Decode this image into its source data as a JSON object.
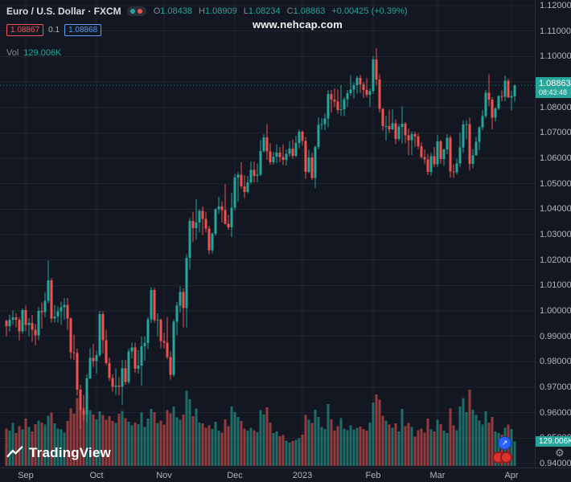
{
  "header": {
    "title": "Euro / U.S. Dollar · FXCM",
    "ohlc": [
      {
        "label": "O",
        "value": "1.08438"
      },
      {
        "label": "H",
        "value": "1.08909"
      },
      {
        "label": "L",
        "value": "1.08234"
      },
      {
        "label": "C",
        "value": "1.08863"
      }
    ],
    "change": "+0.00425 (+0.39%)",
    "bid": "1.08867",
    "spread": "0.1",
    "ask": "1.08868",
    "vol_label": "Vol",
    "vol_value": "129.006K"
  },
  "watermark": "www.nehcap.com",
  "logo": {
    "text": "TradingView"
  },
  "colors": {
    "up": "#26a69a",
    "down": "#ef5350",
    "vol_up": "rgba(38,166,154,0.60)",
    "vol_down": "rgba(239,83,80,0.60)",
    "grid": "rgba(255,255,255,0.06)",
    "badge_green": "#26a69a",
    "bid_red": "#f7525f",
    "ask_blue": "#5b9cf6"
  },
  "price_axis": {
    "ticks": [
      "1.12000",
      "1.11000",
      "1.10000",
      "1.09000",
      "1.08000",
      "1.07000",
      "1.06000",
      "1.05000",
      "1.04000",
      "1.03000",
      "1.02000",
      "1.01000",
      "1.00000",
      "0.99000",
      "0.98000",
      "0.97000",
      "0.96000",
      "0.95000",
      "0.94000"
    ],
    "last_price": "1.08863",
    "countdown": "08:43:48",
    "volume_badge": "129.006K"
  },
  "time_axis": {
    "labels": [
      {
        "text": "Sep",
        "index": 6
      },
      {
        "text": "Oct",
        "index": 28
      },
      {
        "text": "Nov",
        "index": 49
      },
      {
        "text": "Dec",
        "index": 71
      },
      {
        "text": "2023",
        "index": 92
      },
      {
        "text": "Feb",
        "index": 114
      },
      {
        "text": "Mar",
        "index": 134
      },
      {
        "text": "Apr",
        "index": 157
      }
    ]
  },
  "chart_data": {
    "type": "candlestick",
    "title": "Euro / U.S. Dollar",
    "exchange": "FXCM",
    "y_range": [
      0.94,
      1.12
    ],
    "volume_unit": "K",
    "columns": [
      "open",
      "high",
      "low",
      "close",
      "volume_k"
    ],
    "candles": [
      [
        0.996,
        0.9965,
        0.99,
        0.994,
        198
      ],
      [
        0.994,
        0.9985,
        0.992,
        0.9966,
        186
      ],
      [
        0.9966,
        1.0003,
        0.9945,
        0.9975,
        227
      ],
      [
        0.9975,
        0.999,
        0.9935,
        0.9965,
        173
      ],
      [
        0.9965,
        0.9975,
        0.9885,
        0.992,
        211
      ],
      [
        0.992,
        1.001,
        0.991,
        1.0003,
        192
      ],
      [
        1.0003,
        1.002,
        0.992,
        0.9945,
        250
      ],
      [
        0.9945,
        0.9972,
        0.9901,
        0.9952,
        205
      ],
      [
        0.9952,
        0.9985,
        0.9878,
        0.9926,
        182
      ],
      [
        0.9926,
        0.995,
        0.9864,
        0.9903,
        221
      ],
      [
        0.9903,
        1.0015,
        0.9885,
        1.0,
        240
      ],
      [
        1.0,
        1.0033,
        0.993,
        0.9995,
        230
      ],
      [
        0.9995,
        1.0075,
        0.9975,
        1.004,
        218
      ],
      [
        1.004,
        1.0198,
        1.003,
        1.012,
        266
      ],
      [
        1.012,
        1.013,
        0.9955,
        0.997,
        282
      ],
      [
        0.997,
        1.0023,
        0.9955,
        0.9978,
        224
      ],
      [
        0.9978,
        1.0017,
        0.9954,
        0.9999,
        198
      ],
      [
        0.9999,
        1.0036,
        0.9945,
        1.0015,
        192
      ],
      [
        1.0015,
        1.005,
        0.9965,
        1.0023,
        176
      ],
      [
        1.0023,
        1.0051,
        0.9926,
        0.997,
        237
      ],
      [
        0.997,
        0.9975,
        0.981,
        0.9838,
        304
      ],
      [
        0.9838,
        0.9907,
        0.9807,
        0.9835,
        275
      ],
      [
        0.9835,
        0.9851,
        0.9667,
        0.969,
        358
      ],
      [
        0.969,
        0.9709,
        0.9536,
        0.9608,
        378
      ],
      [
        0.9608,
        0.967,
        0.957,
        0.9593,
        307
      ],
      [
        0.9593,
        0.975,
        0.9563,
        0.9735,
        333
      ],
      [
        0.9735,
        0.9853,
        0.973,
        0.9815,
        294
      ],
      [
        0.9815,
        0.987,
        0.978,
        0.9802,
        272
      ],
      [
        0.9802,
        0.9844,
        0.9753,
        0.9826,
        246
      ],
      [
        0.9826,
        1.0,
        0.982,
        0.9987,
        288
      ],
      [
        0.9987,
        0.9999,
        0.9835,
        0.9884,
        269
      ],
      [
        0.9884,
        0.9926,
        0.9787,
        0.9794,
        243
      ],
      [
        0.9794,
        0.9817,
        0.9726,
        0.9737,
        262
      ],
      [
        0.9737,
        0.9751,
        0.9682,
        0.9702,
        237
      ],
      [
        0.9702,
        0.9774,
        0.967,
        0.9706,
        227
      ],
      [
        0.9706,
        0.974,
        0.9668,
        0.9702,
        275
      ],
      [
        0.9702,
        0.9807,
        0.9632,
        0.9775,
        291
      ],
      [
        0.9775,
        0.9807,
        0.9709,
        0.9721,
        253
      ],
      [
        0.9721,
        0.9852,
        0.9712,
        0.984,
        234
      ],
      [
        0.984,
        0.9875,
        0.9814,
        0.9857,
        214
      ],
      [
        0.9857,
        0.9876,
        0.9756,
        0.9772,
        230
      ],
      [
        0.9772,
        0.9845,
        0.9754,
        0.9785,
        221
      ],
      [
        0.9785,
        0.9899,
        0.9705,
        0.9861,
        282
      ],
      [
        0.9861,
        0.9899,
        0.9805,
        0.9873,
        205
      ],
      [
        0.9873,
        0.9976,
        0.985,
        0.9967,
        250
      ],
      [
        0.9967,
        1.0093,
        0.9952,
        1.0082,
        301
      ],
      [
        1.0082,
        1.009,
        0.9955,
        0.9963,
        285
      ],
      [
        0.9963,
        0.999,
        0.99,
        0.9965,
        227
      ],
      [
        0.9965,
        0.997,
        0.9853,
        0.9881,
        240
      ],
      [
        0.9881,
        0.9915,
        0.9853,
        0.9876,
        218
      ],
      [
        0.9876,
        0.9976,
        0.981,
        0.9818,
        294
      ],
      [
        0.9818,
        0.984,
        0.973,
        0.9749,
        278
      ],
      [
        0.9749,
        0.9965,
        0.9741,
        0.9958,
        314
      ],
      [
        0.9958,
        1.0034,
        0.9903,
        1.002,
        256
      ],
      [
        1.002,
        1.0096,
        0.9993,
        1.0074,
        243
      ],
      [
        1.0074,
        1.0089,
        0.9935,
        1.0011,
        272
      ],
      [
        1.0011,
        1.0222,
        0.9936,
        1.0209,
        397
      ],
      [
        1.0209,
        1.0364,
        1.0163,
        1.0354,
        352
      ],
      [
        1.0354,
        1.039,
        1.0271,
        1.0325,
        262
      ],
      [
        1.0325,
        1.0439,
        1.028,
        1.0348,
        304
      ],
      [
        1.0348,
        1.04,
        1.031,
        1.0393,
        230
      ],
      [
        1.0393,
        1.041,
        1.0298,
        1.0362,
        224
      ],
      [
        1.0362,
        1.039,
        1.031,
        1.0324,
        202
      ],
      [
        1.0324,
        1.0334,
        1.0222,
        1.0239,
        214
      ],
      [
        1.0239,
        1.031,
        1.0226,
        1.0303,
        195
      ],
      [
        1.0303,
        1.0405,
        1.0295,
        1.0399,
        234
      ],
      [
        1.0399,
        1.0448,
        1.0382,
        1.041,
        186
      ],
      [
        1.041,
        1.043,
        1.0347,
        1.0397,
        176
      ],
      [
        1.0397,
        1.0497,
        1.034,
        1.0343,
        246
      ],
      [
        1.0343,
        1.0378,
        1.0319,
        1.0328,
        211
      ],
      [
        1.0328,
        1.0463,
        1.029,
        1.0406,
        314
      ],
      [
        1.0406,
        1.0539,
        1.0395,
        1.0525,
        285
      ],
      [
        1.0525,
        1.0545,
        1.043,
        1.0535,
        259
      ],
      [
        1.0535,
        1.0585,
        1.048,
        1.049,
        237
      ],
      [
        1.049,
        1.0533,
        1.0443,
        1.0468,
        198
      ],
      [
        1.0468,
        1.0531,
        1.0463,
        1.0506,
        186
      ],
      [
        1.0506,
        1.0587,
        1.0498,
        1.0554,
        202
      ],
      [
        1.0554,
        1.0588,
        1.0505,
        1.053,
        189
      ],
      [
        1.053,
        1.058,
        1.0506,
        1.0536,
        179
      ],
      [
        1.0536,
        1.0673,
        1.053,
        1.0628,
        294
      ],
      [
        1.0628,
        1.0695,
        1.0622,
        1.0682,
        272
      ],
      [
        1.0682,
        1.0735,
        1.0594,
        1.0627,
        310
      ],
      [
        1.0627,
        1.0658,
        1.0575,
        1.0585,
        230
      ],
      [
        1.0585,
        1.0625,
        1.0574,
        1.0607,
        173
      ],
      [
        1.0607,
        1.0654,
        1.0581,
        1.0622,
        182
      ],
      [
        1.0622,
        1.0644,
        1.0584,
        1.0604,
        157
      ],
      [
        1.0604,
        1.0656,
        1.0573,
        1.0594,
        163
      ],
      [
        1.0594,
        1.0635,
        1.0572,
        1.0618,
        134
      ],
      [
        1.0618,
        1.0668,
        1.0606,
        1.0638,
        122
      ],
      [
        1.0638,
        1.0674,
        1.0598,
        1.061,
        131
      ],
      [
        1.061,
        1.0688,
        1.0605,
        1.066,
        138
      ],
      [
        1.066,
        1.0714,
        1.064,
        1.0705,
        147
      ],
      [
        1.0705,
        1.071,
        1.065,
        1.0668,
        166
      ],
      [
        1.0668,
        1.0683,
        1.052,
        1.0546,
        269
      ],
      [
        1.0546,
        1.0635,
        1.0542,
        1.0603,
        243
      ],
      [
        1.0603,
        1.0622,
        1.0515,
        1.0522,
        227
      ],
      [
        1.0522,
        1.065,
        1.0483,
        1.0645,
        298
      ],
      [
        1.0645,
        1.0761,
        1.0634,
        1.0731,
        259
      ],
      [
        1.0731,
        1.0758,
        1.0712,
        1.0734,
        205
      ],
      [
        1.0734,
        1.0776,
        1.0711,
        1.0756,
        195
      ],
      [
        1.0756,
        1.0868,
        1.0722,
        1.0852,
        326
      ],
      [
        1.0852,
        1.0869,
        1.078,
        1.083,
        246
      ],
      [
        1.083,
        1.0874,
        1.0802,
        1.0822,
        186
      ],
      [
        1.0822,
        1.087,
        1.0775,
        1.0789,
        211
      ],
      [
        1.0789,
        1.0887,
        1.0766,
        1.0793,
        253
      ],
      [
        1.0793,
        1.084,
        1.0766,
        1.0832,
        198
      ],
      [
        1.0832,
        1.0868,
        1.0802,
        1.0856,
        189
      ],
      [
        1.0856,
        1.0927,
        1.0846,
        1.087,
        214
      ],
      [
        1.087,
        1.0898,
        1.0835,
        1.0887,
        192
      ],
      [
        1.0887,
        1.0923,
        1.0855,
        1.0916,
        202
      ],
      [
        1.0916,
        1.0929,
        1.0858,
        1.0891,
        208
      ],
      [
        1.0891,
        1.09,
        1.0837,
        1.0868,
        195
      ],
      [
        1.0868,
        1.0915,
        1.084,
        1.0849,
        186
      ],
      [
        1.0849,
        1.0874,
        1.0802,
        1.0863,
        230
      ],
      [
        1.0863,
        1.1001,
        1.0852,
        1.0989,
        336
      ],
      [
        1.0989,
        1.1033,
        1.0886,
        1.091,
        378
      ],
      [
        1.091,
        1.093,
        1.078,
        1.0795,
        349
      ],
      [
        1.0795,
        1.0798,
        1.0709,
        1.0726,
        266
      ],
      [
        1.0726,
        1.0766,
        1.0669,
        1.0726,
        240
      ],
      [
        1.0726,
        1.0791,
        1.07,
        1.0713,
        218
      ],
      [
        1.0713,
        1.0793,
        1.0711,
        1.0737,
        202
      ],
      [
        1.0737,
        1.0753,
        1.0656,
        1.0676,
        224
      ],
      [
        1.0676,
        1.0735,
        1.0668,
        1.0723,
        182
      ],
      [
        1.0723,
        1.0804,
        1.0659,
        1.0736,
        301
      ],
      [
        1.0736,
        1.0744,
        1.066,
        1.069,
        211
      ],
      [
        1.069,
        1.0717,
        1.0612,
        1.0671,
        227
      ],
      [
        1.0671,
        1.0706,
        1.0613,
        1.0694,
        205
      ],
      [
        1.0694,
        1.0705,
        1.0645,
        1.0686,
        154
      ],
      [
        1.0686,
        1.0698,
        1.0636,
        1.0648,
        189
      ],
      [
        1.0648,
        1.0663,
        1.0598,
        1.0605,
        198
      ],
      [
        1.0605,
        1.0635,
        1.0577,
        1.0596,
        176
      ],
      [
        1.0596,
        1.0617,
        1.0533,
        1.0546,
        250
      ],
      [
        1.0546,
        1.062,
        1.0532,
        1.0608,
        192
      ],
      [
        1.0608,
        1.0645,
        1.0565,
        1.0576,
        182
      ],
      [
        1.0576,
        1.0691,
        1.0565,
        1.0666,
        243
      ],
      [
        1.0666,
        1.0673,
        1.0578,
        1.0597,
        221
      ],
      [
        1.0597,
        1.0638,
        1.057,
        1.0635,
        186
      ],
      [
        1.0635,
        1.0694,
        1.0616,
        1.068,
        173
      ],
      [
        1.068,
        1.069,
        1.0524,
        1.0548,
        304
      ],
      [
        1.0548,
        1.0577,
        1.0523,
        1.0545,
        214
      ],
      [
        1.0545,
        1.0599,
        1.0537,
        1.058,
        189
      ],
      [
        1.058,
        1.0701,
        1.0567,
        1.0643,
        314
      ],
      [
        1.0643,
        1.0749,
        1.062,
        1.0732,
        358
      ],
      [
        1.0732,
        1.075,
        1.0674,
        1.0734,
        285
      ],
      [
        1.0734,
        1.076,
        1.0551,
        1.0578,
        403
      ],
      [
        1.0578,
        1.0636,
        1.056,
        1.0611,
        298
      ],
      [
        1.0611,
        1.0686,
        1.0611,
        1.0665,
        269
      ],
      [
        1.0665,
        1.0727,
        1.0632,
        1.0721,
        240
      ],
      [
        1.0721,
        1.0789,
        1.071,
        1.0766,
        218
      ],
      [
        1.0766,
        1.0869,
        1.0758,
        1.0857,
        288
      ],
      [
        1.0857,
        1.093,
        1.0805,
        1.083,
        230
      ],
      [
        1.083,
        1.084,
        1.0713,
        1.076,
        259
      ],
      [
        1.076,
        1.08,
        1.0745,
        1.0796,
        182
      ],
      [
        1.0796,
        1.0848,
        1.0789,
        1.0845,
        173
      ],
      [
        1.0845,
        1.0867,
        1.0824,
        1.0841,
        166
      ],
      [
        1.0841,
        1.0926,
        1.0824,
        1.0905,
        202
      ],
      [
        1.0905,
        1.0913,
        1.0838,
        1.0839,
        218
      ],
      [
        1.0839,
        1.0865,
        1.0788,
        1.0844,
        195
      ],
      [
        1.08438,
        1.08909,
        1.08234,
        1.08863,
        129.006
      ]
    ]
  }
}
